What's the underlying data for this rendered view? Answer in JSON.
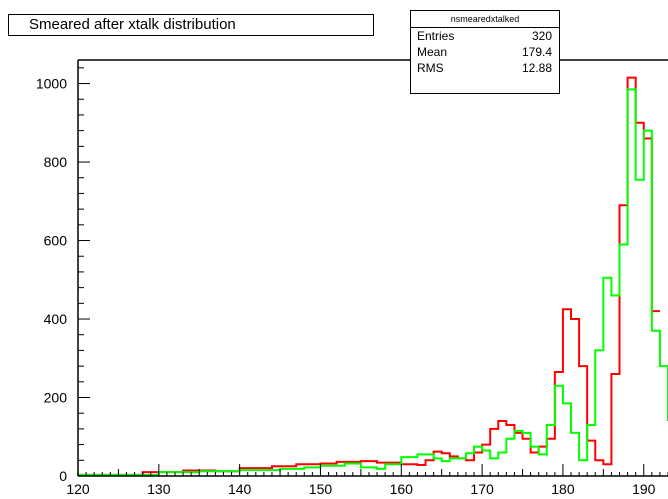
{
  "title": "Smeared after xtalk distribution",
  "stats": {
    "name": "nsmearedxtalked",
    "rows": [
      {
        "label": "Entries",
        "value": "320"
      },
      {
        "label": "Mean",
        "value": "179.4"
      },
      {
        "label": "RMS",
        "value": "12.88"
      }
    ]
  },
  "chart_data": {
    "type": "line",
    "title": "Smeared after xtalk distribution",
    "xlabel": "",
    "ylabel": "",
    "xlim": [
      120,
      193
    ],
    "ylim": [
      0,
      1060
    ],
    "x_ticks": [
      120,
      130,
      140,
      150,
      160,
      170,
      180,
      190
    ],
    "y_ticks": [
      0,
      200,
      400,
      600,
      800,
      1000
    ],
    "grid": false,
    "series": [
      {
        "color": "#ff0000",
        "bin_edges": [
          120,
          128,
          133,
          137,
          140,
          144,
          147,
          150,
          152,
          155,
          157,
          160,
          162,
          163,
          164,
          165,
          166,
          167,
          168,
          169,
          170,
          171,
          172,
          173,
          174,
          175,
          176,
          177,
          178,
          179,
          180,
          181,
          182,
          183,
          184,
          185,
          186,
          187,
          188,
          189,
          190,
          191,
          192
        ],
        "values": [
          3,
          10,
          14,
          12,
          20,
          25,
          30,
          32,
          36,
          38,
          34,
          30,
          28,
          40,
          62,
          58,
          50,
          45,
          40,
          60,
          80,
          120,
          140,
          130,
          110,
          95,
          60,
          75,
          95,
          265,
          425,
          400,
          280,
          90,
          40,
          30,
          260,
          690,
          1015,
          900,
          860,
          420
        ]
      },
      {
        "color": "#00ff00",
        "bin_edges": [
          120,
          130,
          135,
          140,
          145,
          148,
          150,
          153,
          155,
          157,
          158,
          160,
          162,
          164,
          165,
          166,
          168,
          169,
          170,
          171,
          172,
          173,
          174,
          175,
          176,
          177,
          178,
          179,
          180,
          181,
          182,
          183,
          184,
          185,
          186,
          187,
          188,
          189,
          190,
          191,
          192,
          193
        ],
        "values": [
          3,
          10,
          12,
          15,
          18,
          22,
          26,
          32,
          22,
          18,
          30,
          48,
          55,
          45,
          38,
          45,
          58,
          75,
          65,
          45,
          60,
          95,
          115,
          110,
          75,
          55,
          130,
          230,
          185,
          110,
          40,
          130,
          320,
          505,
          460,
          590,
          985,
          755,
          880,
          370,
          280,
          140
        ]
      }
    ]
  }
}
